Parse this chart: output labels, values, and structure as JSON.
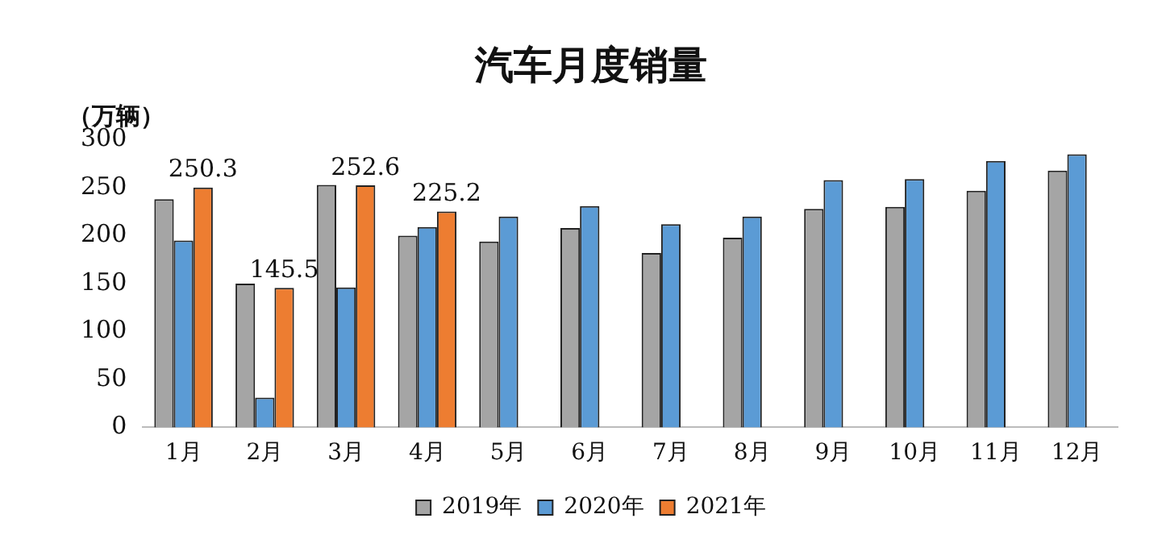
{
  "chart_data": {
    "type": "bar",
    "title": "汽车月度销量",
    "ylabel": "（万辆）",
    "categories": [
      "1月",
      "2月",
      "3月",
      "4月",
      "5月",
      "6月",
      "7月",
      "8月",
      "9月",
      "10月",
      "11月",
      "12月"
    ],
    "series": [
      {
        "name": "2019年",
        "color": "#a5a5a5",
        "values": [
          238,
          150,
          253,
          200,
          194,
          208,
          182,
          198,
          228,
          230,
          247,
          268
        ]
      },
      {
        "name": "2020年",
        "color": "#5b9bd5",
        "values": [
          195,
          31,
          146,
          209,
          220,
          231,
          212,
          220,
          258,
          259,
          278,
          285
        ]
      },
      {
        "name": "2021年",
        "color": "#ed7d31",
        "values": [
          250.3,
          145.5,
          252.6,
          225.2,
          null,
          null,
          null,
          null,
          null,
          null,
          null,
          null
        ],
        "value_labels": [
          "250.3",
          "145.5",
          "252.6",
          "225.2",
          null,
          null,
          null,
          null,
          null,
          null,
          null,
          null
        ]
      }
    ],
    "ylim": [
      0,
      300
    ],
    "yticks": [
      0,
      50,
      100,
      150,
      200,
      250,
      300
    ],
    "grid": false,
    "legend": "bottom"
  }
}
